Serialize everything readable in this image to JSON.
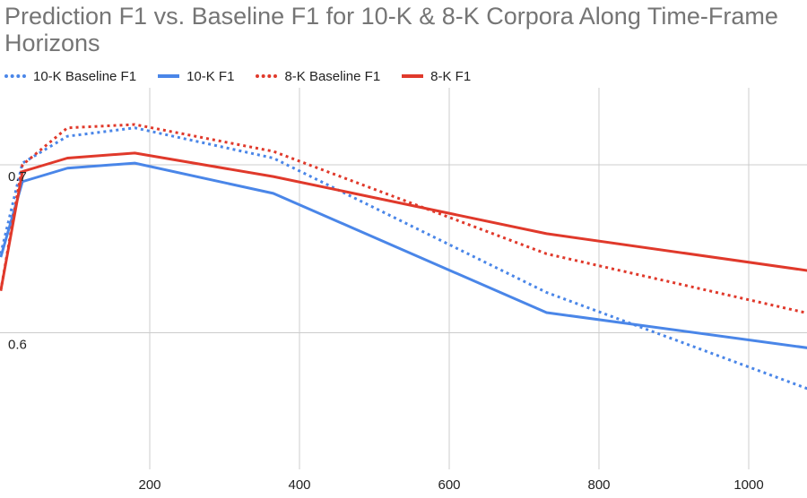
{
  "chart_data": {
    "type": "line",
    "title": "Prediction F1 vs. Baseline F1 for 10-K & 8-K Corpora Along Time-Frame Horizons",
    "xlabel": "",
    "ylabel": "",
    "xticks": [
      200,
      400,
      600,
      800,
      1000
    ],
    "yticks": [
      0.6,
      0.7
    ],
    "grid": true,
    "legend_position": "top-left",
    "series": [
      {
        "name": "10-K Baseline F1",
        "color": "#4a86e8",
        "dash": "dotted",
        "x": [
          1,
          30,
          90,
          180,
          365,
          730,
          1095
        ],
        "y": [
          0.647,
          0.701,
          0.717,
          0.722,
          0.704,
          0.624,
          0.564
        ]
      },
      {
        "name": "10-K F1",
        "color": "#4a86e8",
        "dash": "solid",
        "x": [
          1,
          30,
          90,
          180,
          365,
          730,
          1095
        ],
        "y": [
          0.645,
          0.69,
          0.698,
          0.701,
          0.683,
          0.612,
          0.59
        ]
      },
      {
        "name": "8-K Baseline F1",
        "color": "#e0392b",
        "dash": "dotted",
        "x": [
          1,
          30,
          90,
          180,
          365,
          730,
          1095
        ],
        "y": [
          0.625,
          0.7,
          0.722,
          0.724,
          0.708,
          0.647,
          0.61
        ]
      },
      {
        "name": "8-K F1",
        "color": "#e0392b",
        "dash": "solid",
        "x": [
          1,
          30,
          90,
          180,
          365,
          730,
          1095
        ],
        "y": [
          0.625,
          0.696,
          0.704,
          0.707,
          0.693,
          0.659,
          0.636
        ]
      }
    ]
  }
}
